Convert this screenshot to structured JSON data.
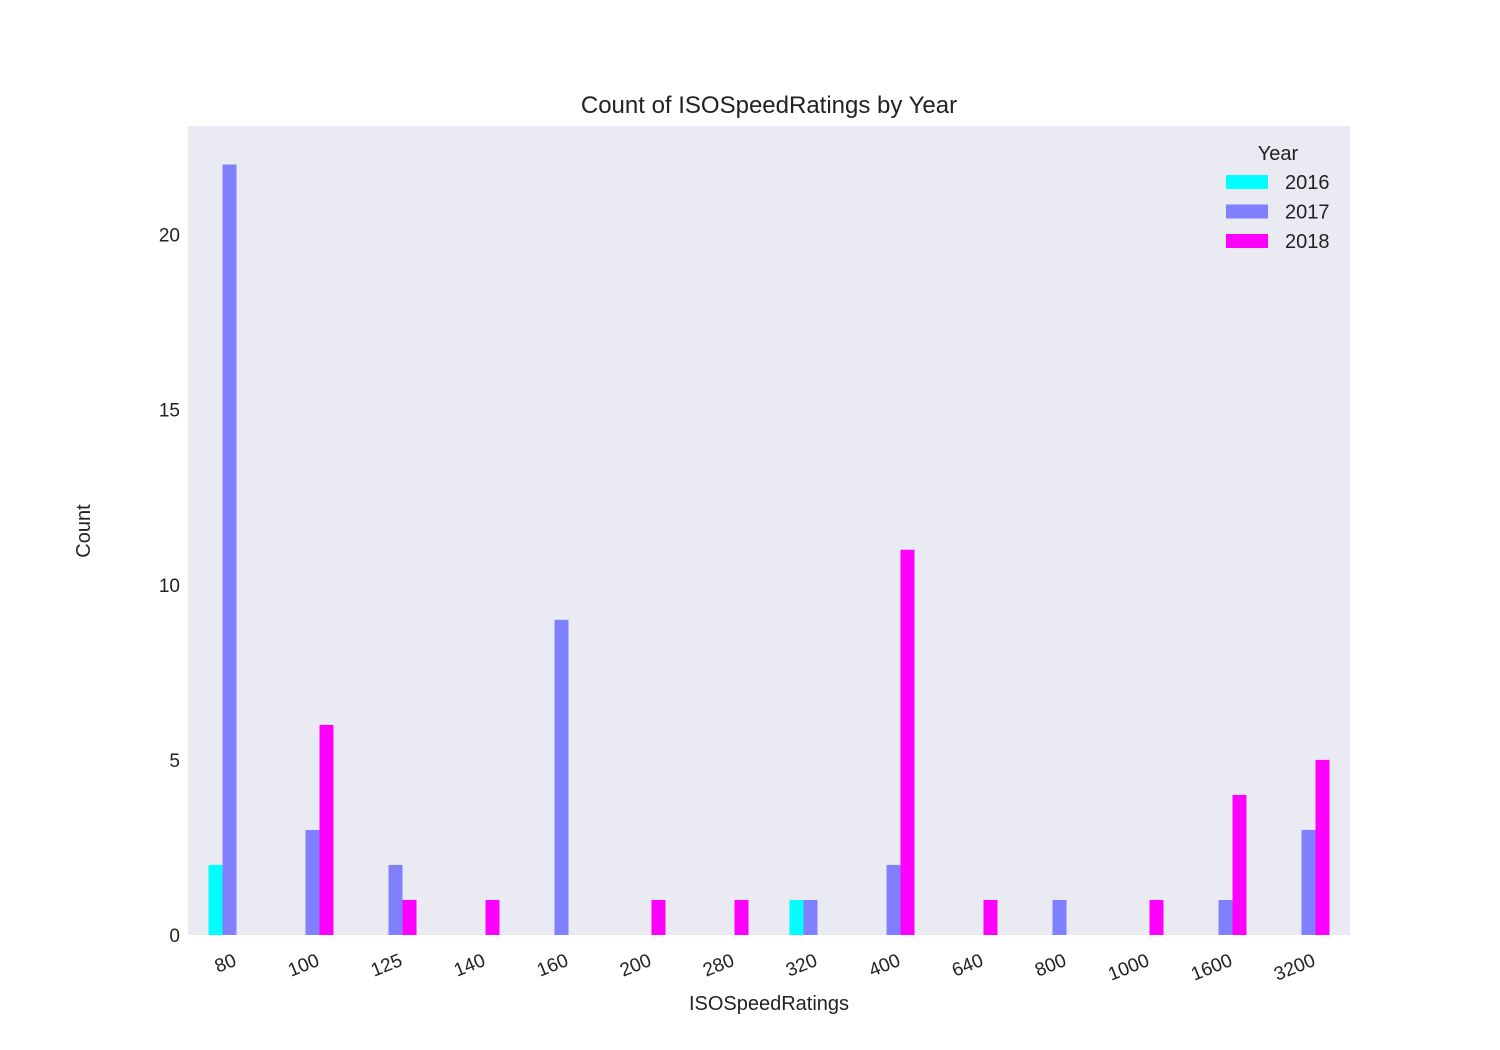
{
  "chart_data": {
    "type": "bar",
    "title": "Count of ISOSpeedRatings by Year",
    "xlabel": "ISOSpeedRatings",
    "ylabel": "Count",
    "categories": [
      "80",
      "100",
      "125",
      "140",
      "160",
      "200",
      "280",
      "320",
      "400",
      "640",
      "800",
      "1000",
      "1600",
      "3200"
    ],
    "series": [
      {
        "name": "2016",
        "color": "#00ffff",
        "values": [
          2,
          0,
          0,
          0,
          0,
          0,
          0,
          1,
          0,
          0,
          0,
          0,
          0,
          0
        ]
      },
      {
        "name": "2017",
        "color": "#8080ff",
        "values": [
          22,
          3,
          2,
          0,
          9,
          0,
          0,
          1,
          2,
          0,
          1,
          0,
          1,
          3
        ]
      },
      {
        "name": "2018",
        "color": "#ff00ff",
        "values": [
          0,
          6,
          1,
          1,
          0,
          1,
          1,
          0,
          11,
          1,
          0,
          1,
          4,
          5
        ]
      }
    ],
    "ylim": [
      0,
      23.1
    ],
    "yticks": [
      0,
      5,
      10,
      15,
      20
    ],
    "legend": {
      "title": "Year",
      "placement": "top-right"
    },
    "grid": false,
    "background": "#eaeaf2"
  }
}
